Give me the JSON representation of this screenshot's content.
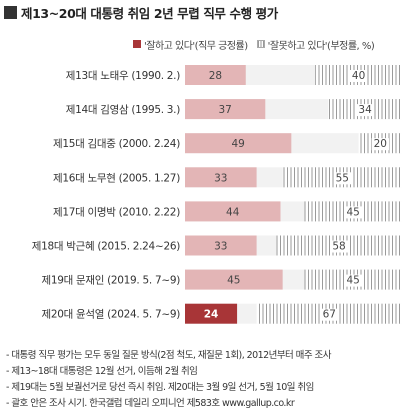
{
  "title": "제13~20대 대통령 취임 2년 무렵 직무 수행 평가",
  "colors": {
    "positive": "#e3b5b6",
    "positive_highlight": "#a83537",
    "negative_stripe": "#9a9a9a",
    "rest": "#f2f2f2"
  },
  "chart_data": {
    "type": "bar",
    "orientation": "horizontal",
    "stacked": true,
    "categories": [
      "제13대 노태우 (1990. 2.)",
      "제14대 김영삼 (1995. 3.)",
      "제15대 김대중 (2000. 2.24)",
      "제16대 노무현 (2005. 1.27)",
      "제17대 이명박 (2010. 2.22)",
      "제18대 박근혜 (2015. 2.24~26)",
      "제19대 문재인 (2019. 5. 7~9)",
      "제20대 윤석열 (2024. 5. 7~9)"
    ],
    "series": [
      {
        "name": "'잘하고 있다'(직무 긍정률)",
        "values": [
          28,
          37,
          49,
          33,
          44,
          33,
          45,
          24
        ]
      },
      {
        "name": "'잘못하고 있다'(부정률, %)",
        "values": [
          40,
          34,
          20,
          55,
          45,
          58,
          45,
          67
        ]
      }
    ],
    "highlight_index": 7,
    "xlim": [
      0,
      100
    ],
    "legend": "top",
    "legend_text": [
      "'잘하고 있다'(직무 긍정률)",
      "'잘못하고 있다'(부정률, %)"
    ]
  },
  "footnotes": [
    "- 대통령 직무 평가는 모두 동일 질문 방식(2점 척도, 재질문 1회), 2012년부터 매주 조사",
    "- 제13~18대 대통령은 12월 선거, 이듬해 2월 취임",
    "- 제19대는 5월 보궐선거로 당선 즉시 취임. 제20대는 3월 9일 선거, 5월 10일 취임",
    "- 괄호 안은 조사 시기. 한국갤럽 데일리 오피니언 제583호 www.gallup.co.kr"
  ]
}
